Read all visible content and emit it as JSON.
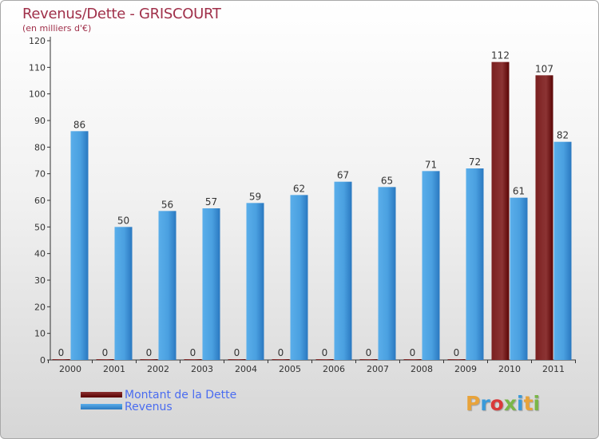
{
  "title": "Revenus/Dette - GRISCOURT",
  "subtitle": "(en milliers d'€)",
  "brand": {
    "text": "Proxiti",
    "colors": [
      "#e8a33a",
      "#3a9ad9",
      "#d93a3a",
      "#7ab648",
      "#3a9ad9",
      "#e8a33a",
      "#7ab648"
    ]
  },
  "colors": {
    "title": "#a0304a",
    "dette_dark": "#5a0000",
    "dette_light": "#9a3a3a",
    "revenus_dark": "#2a78c0",
    "revenus_light": "#5aaeea",
    "legend_text": "#4a6cf0"
  },
  "chart_data": {
    "type": "bar",
    "categories": [
      "2000",
      "2001",
      "2002",
      "2003",
      "2004",
      "2005",
      "2006",
      "2007",
      "2008",
      "2009",
      "2010",
      "2011"
    ],
    "series": [
      {
        "name": "Montant de la Dette",
        "values": [
          0,
          0,
          0,
          0,
          0,
          0,
          0,
          0,
          0,
          0,
          112,
          107
        ]
      },
      {
        "name": "Revenus",
        "values": [
          86,
          50,
          56,
          57,
          59,
          62,
          67,
          65,
          71,
          72,
          61,
          82
        ]
      }
    ],
    "yticks": [
      0,
      10,
      20,
      30,
      40,
      50,
      60,
      70,
      80,
      90,
      100,
      110,
      120
    ],
    "ylim": [
      0,
      120
    ],
    "grid": false,
    "legend_position": "bottom-left"
  }
}
